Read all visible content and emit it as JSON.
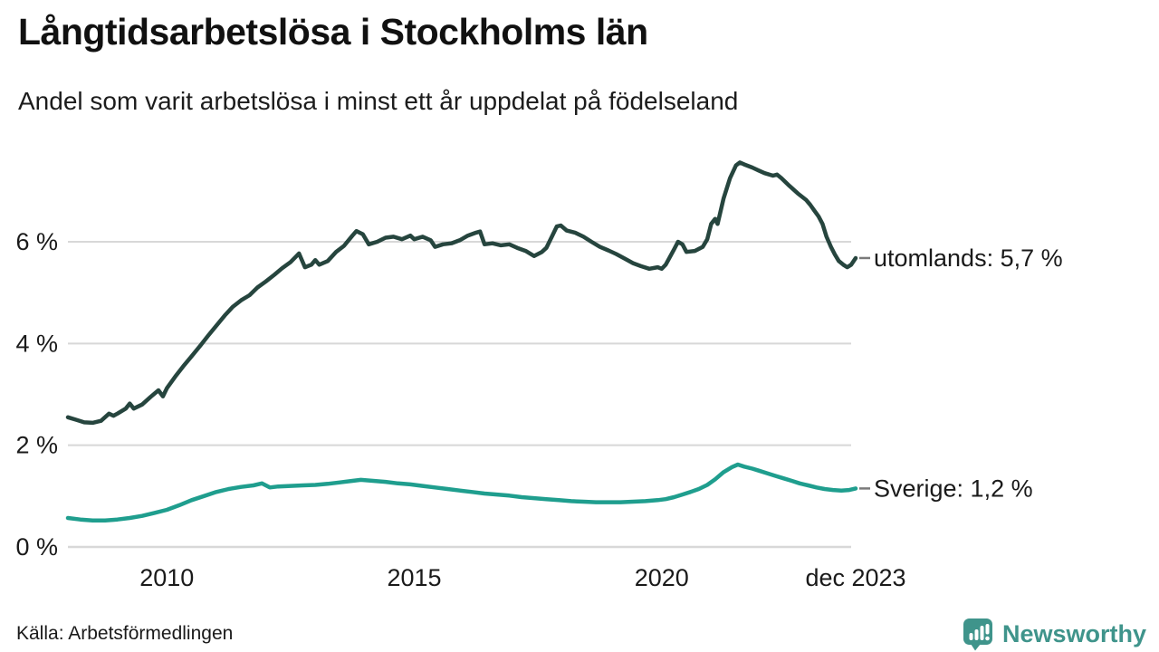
{
  "header": {
    "title": "Långtidsarbetslösa i Stockholms län",
    "subtitle": "Andel som varit arbetslösa i minst ett år uppdelat på födelseland"
  },
  "footer": {
    "source": "Källa: Arbetsförmedlingen",
    "brand": "Newsworthy"
  },
  "colors": {
    "series_utomlands": "#26453e",
    "series_sverige": "#1f9e8e",
    "gridline": "#d8d8d8",
    "axis_text": "#1a1a1a",
    "legend_dash": "#7a7a7a",
    "brand_teal": "#3f948b"
  },
  "chart_data": {
    "type": "line",
    "title": "Långtidsarbetslösa i Stockholms län",
    "subtitle": "Andel som varit arbetslösa i minst ett år uppdelat på födelseland",
    "grid": true,
    "legend_position": "right-end",
    "x_axis": {
      "range": [
        2008.0,
        2023.92
      ],
      "ticks": [
        {
          "label": "2010",
          "value": 2010
        },
        {
          "label": "2015",
          "value": 2015
        },
        {
          "label": "2020",
          "value": 2020
        },
        {
          "label": "dec 2023",
          "value": 2023.92
        }
      ]
    },
    "y_axis": {
      "unit": "%",
      "range": [
        0,
        7.8
      ],
      "ticks": [
        {
          "label": "0 %",
          "value": 0
        },
        {
          "label": "2 %",
          "value": 2
        },
        {
          "label": "4 %",
          "value": 4
        },
        {
          "label": "6 %",
          "value": 6
        }
      ]
    },
    "series": [
      {
        "name": "utomlands",
        "legend_label": "utomlands: 5,7 %",
        "end_value_label": "5,7 %",
        "color": "#26453e",
        "points": [
          [
            2008.0,
            2.55
          ],
          [
            2008.17,
            2.5
          ],
          [
            2008.33,
            2.45
          ],
          [
            2008.5,
            2.44
          ],
          [
            2008.67,
            2.48
          ],
          [
            2008.83,
            2.62
          ],
          [
            2008.92,
            2.58
          ],
          [
            2009.0,
            2.62
          ],
          [
            2009.17,
            2.72
          ],
          [
            2009.25,
            2.82
          ],
          [
            2009.33,
            2.72
          ],
          [
            2009.5,
            2.8
          ],
          [
            2009.67,
            2.95
          ],
          [
            2009.83,
            3.08
          ],
          [
            2009.92,
            2.96
          ],
          [
            2010.0,
            3.12
          ],
          [
            2010.17,
            3.35
          ],
          [
            2010.33,
            3.55
          ],
          [
            2010.5,
            3.75
          ],
          [
            2010.67,
            3.95
          ],
          [
            2010.83,
            4.15
          ],
          [
            2011.0,
            4.35
          ],
          [
            2011.17,
            4.55
          ],
          [
            2011.33,
            4.72
          ],
          [
            2011.5,
            4.85
          ],
          [
            2011.67,
            4.95
          ],
          [
            2011.83,
            5.1
          ],
          [
            2012.0,
            5.22
          ],
          [
            2012.17,
            5.35
          ],
          [
            2012.33,
            5.48
          ],
          [
            2012.5,
            5.6
          ],
          [
            2012.67,
            5.77
          ],
          [
            2012.79,
            5.5
          ],
          [
            2012.92,
            5.55
          ],
          [
            2013.0,
            5.64
          ],
          [
            2013.08,
            5.55
          ],
          [
            2013.25,
            5.62
          ],
          [
            2013.42,
            5.8
          ],
          [
            2013.58,
            5.92
          ],
          [
            2013.75,
            6.12
          ],
          [
            2013.83,
            6.21
          ],
          [
            2013.96,
            6.15
          ],
          [
            2014.08,
            5.95
          ],
          [
            2014.25,
            6.0
          ],
          [
            2014.42,
            6.08
          ],
          [
            2014.58,
            6.1
          ],
          [
            2014.75,
            6.05
          ],
          [
            2014.92,
            6.12
          ],
          [
            2015.0,
            6.05
          ],
          [
            2015.17,
            6.1
          ],
          [
            2015.33,
            6.03
          ],
          [
            2015.42,
            5.9
          ],
          [
            2015.58,
            5.95
          ],
          [
            2015.75,
            5.97
          ],
          [
            2015.92,
            6.03
          ],
          [
            2016.08,
            6.12
          ],
          [
            2016.25,
            6.18
          ],
          [
            2016.33,
            6.2
          ],
          [
            2016.42,
            5.95
          ],
          [
            2016.58,
            5.97
          ],
          [
            2016.75,
            5.93
          ],
          [
            2016.92,
            5.95
          ],
          [
            2017.08,
            5.88
          ],
          [
            2017.25,
            5.82
          ],
          [
            2017.42,
            5.72
          ],
          [
            2017.58,
            5.8
          ],
          [
            2017.67,
            5.88
          ],
          [
            2017.79,
            6.12
          ],
          [
            2017.88,
            6.3
          ],
          [
            2017.96,
            6.32
          ],
          [
            2018.08,
            6.22
          ],
          [
            2018.25,
            6.18
          ],
          [
            2018.42,
            6.1
          ],
          [
            2018.58,
            6.0
          ],
          [
            2018.75,
            5.9
          ],
          [
            2018.92,
            5.83
          ],
          [
            2019.08,
            5.76
          ],
          [
            2019.25,
            5.67
          ],
          [
            2019.42,
            5.58
          ],
          [
            2019.58,
            5.52
          ],
          [
            2019.75,
            5.47
          ],
          [
            2019.92,
            5.5
          ],
          [
            2020.0,
            5.47
          ],
          [
            2020.08,
            5.55
          ],
          [
            2020.25,
            5.85
          ],
          [
            2020.33,
            6.0
          ],
          [
            2020.42,
            5.95
          ],
          [
            2020.5,
            5.8
          ],
          [
            2020.67,
            5.82
          ],
          [
            2020.83,
            5.9
          ],
          [
            2020.92,
            6.05
          ],
          [
            2021.0,
            6.35
          ],
          [
            2021.08,
            6.45
          ],
          [
            2021.13,
            6.35
          ],
          [
            2021.25,
            6.85
          ],
          [
            2021.38,
            7.25
          ],
          [
            2021.5,
            7.5
          ],
          [
            2021.58,
            7.56
          ],
          [
            2021.67,
            7.52
          ],
          [
            2021.83,
            7.46
          ],
          [
            2021.96,
            7.4
          ],
          [
            2022.08,
            7.35
          ],
          [
            2022.25,
            7.3
          ],
          [
            2022.33,
            7.32
          ],
          [
            2022.42,
            7.25
          ],
          [
            2022.58,
            7.1
          ],
          [
            2022.75,
            6.95
          ],
          [
            2022.92,
            6.82
          ],
          [
            2023.0,
            6.73
          ],
          [
            2023.08,
            6.62
          ],
          [
            2023.17,
            6.5
          ],
          [
            2023.25,
            6.35
          ],
          [
            2023.33,
            6.1
          ],
          [
            2023.42,
            5.9
          ],
          [
            2023.5,
            5.75
          ],
          [
            2023.58,
            5.62
          ],
          [
            2023.67,
            5.55
          ],
          [
            2023.75,
            5.5
          ],
          [
            2023.83,
            5.55
          ],
          [
            2023.92,
            5.68
          ]
        ]
      },
      {
        "name": "Sverige",
        "legend_label": "Sverige: 1,2 %",
        "end_value_label": "1,2 %",
        "color": "#1f9e8e",
        "points": [
          [
            2008.0,
            0.57
          ],
          [
            2008.25,
            0.54
          ],
          [
            2008.5,
            0.52
          ],
          [
            2008.75,
            0.52
          ],
          [
            2009.0,
            0.54
          ],
          [
            2009.25,
            0.57
          ],
          [
            2009.5,
            0.61
          ],
          [
            2009.75,
            0.67
          ],
          [
            2010.0,
            0.73
          ],
          [
            2010.25,
            0.82
          ],
          [
            2010.5,
            0.92
          ],
          [
            2010.75,
            1.0
          ],
          [
            2011.0,
            1.08
          ],
          [
            2011.25,
            1.14
          ],
          [
            2011.5,
            1.18
          ],
          [
            2011.75,
            1.21
          ],
          [
            2011.92,
            1.25
          ],
          [
            2012.08,
            1.17
          ],
          [
            2012.25,
            1.19
          ],
          [
            2012.5,
            1.2
          ],
          [
            2012.75,
            1.21
          ],
          [
            2013.0,
            1.22
          ],
          [
            2013.25,
            1.24
          ],
          [
            2013.5,
            1.27
          ],
          [
            2013.75,
            1.3
          ],
          [
            2013.92,
            1.32
          ],
          [
            2014.17,
            1.3
          ],
          [
            2014.42,
            1.28
          ],
          [
            2014.67,
            1.25
          ],
          [
            2014.92,
            1.23
          ],
          [
            2015.17,
            1.2
          ],
          [
            2015.42,
            1.17
          ],
          [
            2015.67,
            1.14
          ],
          [
            2015.92,
            1.11
          ],
          [
            2016.17,
            1.08
          ],
          [
            2016.42,
            1.05
          ],
          [
            2016.67,
            1.03
          ],
          [
            2016.92,
            1.01
          ],
          [
            2017.17,
            0.98
          ],
          [
            2017.42,
            0.96
          ],
          [
            2017.67,
            0.94
          ],
          [
            2017.92,
            0.92
          ],
          [
            2018.17,
            0.9
          ],
          [
            2018.42,
            0.89
          ],
          [
            2018.67,
            0.88
          ],
          [
            2018.92,
            0.88
          ],
          [
            2019.17,
            0.88
          ],
          [
            2019.42,
            0.89
          ],
          [
            2019.67,
            0.9
          ],
          [
            2019.92,
            0.92
          ],
          [
            2020.08,
            0.94
          ],
          [
            2020.25,
            0.98
          ],
          [
            2020.42,
            1.03
          ],
          [
            2020.58,
            1.08
          ],
          [
            2020.75,
            1.14
          ],
          [
            2020.92,
            1.22
          ],
          [
            2021.08,
            1.33
          ],
          [
            2021.25,
            1.47
          ],
          [
            2021.42,
            1.57
          ],
          [
            2021.54,
            1.62
          ],
          [
            2021.67,
            1.58
          ],
          [
            2021.83,
            1.54
          ],
          [
            2021.96,
            1.5
          ],
          [
            2022.13,
            1.45
          ],
          [
            2022.29,
            1.4
          ],
          [
            2022.46,
            1.35
          ],
          [
            2022.63,
            1.3
          ],
          [
            2022.79,
            1.25
          ],
          [
            2022.96,
            1.21
          ],
          [
            2023.13,
            1.17
          ],
          [
            2023.29,
            1.14
          ],
          [
            2023.46,
            1.12
          ],
          [
            2023.63,
            1.11
          ],
          [
            2023.79,
            1.12
          ],
          [
            2023.92,
            1.15
          ]
        ]
      }
    ]
  }
}
